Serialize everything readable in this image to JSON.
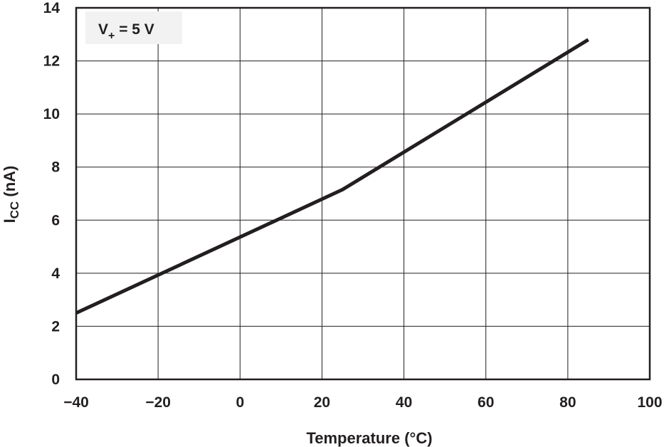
{
  "chart_data": {
    "type": "line",
    "title": "",
    "xlabel": "Temperature (°C)",
    "ylabel_main": "I",
    "ylabel_sub": "CC",
    "ylabel_unit": " (nA)",
    "xlim": [
      -40,
      100
    ],
    "ylim": [
      0,
      14
    ],
    "xticks": [
      -40,
      -20,
      0,
      20,
      40,
      60,
      80,
      100
    ],
    "yticks": [
      0,
      2,
      4,
      6,
      8,
      10,
      12,
      14
    ],
    "xtick_labels": [
      "−40",
      "−20",
      "0",
      "20",
      "40",
      "60",
      "80",
      "100"
    ],
    "ytick_labels": [
      "0",
      "2",
      "4",
      "6",
      "8",
      "10",
      "12",
      "14"
    ],
    "grid": true,
    "annotation": {
      "main": "V",
      "sub": "+",
      "rest": " = 5 V"
    },
    "series": [
      {
        "name": "V+ = 5 V",
        "color": "#231f20",
        "x": [
          -40,
          25,
          85
        ],
        "y": [
          2.5,
          7.15,
          12.8
        ]
      }
    ]
  }
}
